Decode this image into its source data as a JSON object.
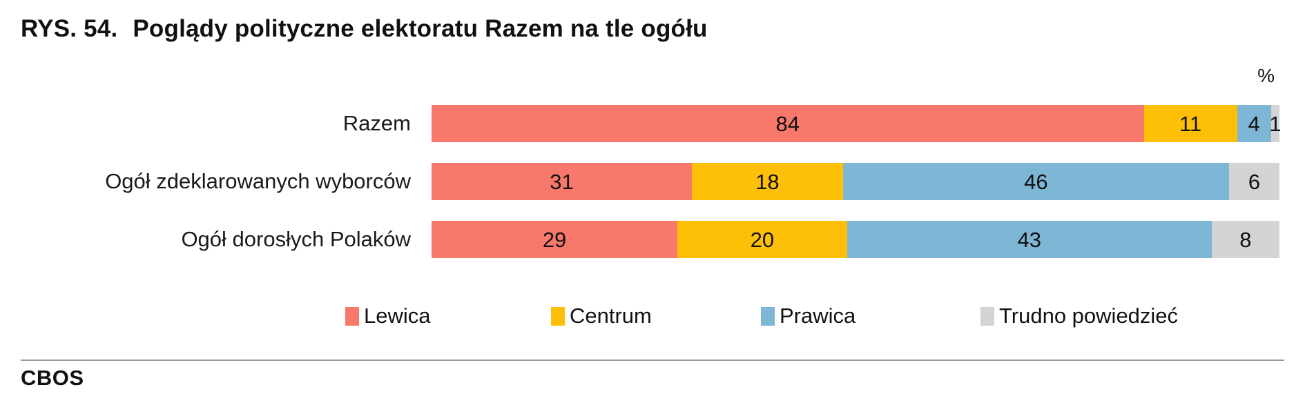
{
  "title": {
    "prefix": "RYS. 54.",
    "text": "Poglądy polityczne elektoratu Razem na tle ogółu"
  },
  "footer": {
    "brand": "CBOS"
  },
  "chart_data": {
    "type": "bar",
    "orientation": "horizontal-stacked",
    "title": "RYS. 54. Poglądy polityczne elektoratu Razem na tle ogółu",
    "unit_label": "%",
    "xlim": [
      0,
      100
    ],
    "value_labels": "inside-center",
    "legend_position": "bottom",
    "categories": [
      "Razem",
      "Ogół zdeklarowanych wyborców",
      "Ogół dorosłych Polaków"
    ],
    "series": [
      {
        "key": "lewica",
        "name": "Lewica",
        "color": "#F8796B",
        "values": [
          84,
          31,
          29
        ]
      },
      {
        "key": "centrum",
        "name": "Centrum",
        "color": "#FEC007",
        "values": [
          11,
          18,
          20
        ]
      },
      {
        "key": "prawica",
        "name": "Prawica",
        "color": "#7EB6D5",
        "values": [
          4,
          46,
          43
        ]
      },
      {
        "key": "trudno-powiedziec",
        "name": "Trudno powiedzieć",
        "color": "#D3D4D3",
        "values": [
          1,
          6,
          8
        ]
      }
    ]
  }
}
